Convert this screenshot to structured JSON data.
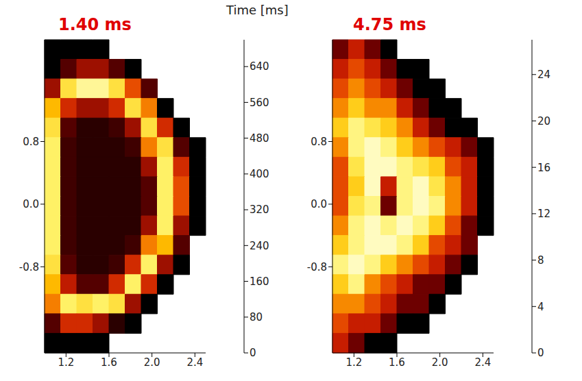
{
  "title": "Time [ms]",
  "chart_data": [
    {
      "type": "heatmap",
      "title": "1.40 ms",
      "xlim": [
        1.0,
        2.5
      ],
      "ylim": [
        -1.9,
        2.1
      ],
      "xticks": [
        1.2,
        1.6,
        {
          "value": 2,
          "label": "2.0"
        },
        2.4
      ],
      "yticks": [
        -0.8,
        {
          "value": 0,
          "label": "0.0"
        },
        0.8
      ],
      "x_bins": [
        1.0,
        1.15,
        1.3,
        1.45,
        1.6,
        1.75,
        1.9,
        2.05,
        2.2,
        2.35,
        2.5
      ],
      "y_bins": [
        2.1,
        1.85,
        1.6,
        1.35,
        1.1,
        0.85,
        0.6,
        0.35,
        0.1,
        -0.15,
        -0.4,
        -0.65,
        -0.9,
        -1.15,
        -1.4,
        -1.65,
        -1.9
      ],
      "cells": [
        [
          0,
          0,
          0,
          0,
          null,
          null,
          null,
          null,
          null,
          null
        ],
        [
          0,
          80,
          160,
          160,
          80,
          0,
          null,
          null,
          null,
          null
        ],
        [
          160,
          560,
          640,
          640,
          560,
          320,
          80,
          null,
          null,
          null
        ],
        [
          480,
          240,
          160,
          160,
          240,
          560,
          400,
          0,
          null,
          null
        ],
        [
          560,
          80,
          40,
          40,
          60,
          160,
          560,
          240,
          0,
          null
        ],
        [
          600,
          60,
          40,
          40,
          40,
          60,
          400,
          560,
          80,
          0
        ],
        [
          600,
          60,
          40,
          40,
          40,
          40,
          160,
          600,
          240,
          0
        ],
        [
          600,
          60,
          40,
          40,
          40,
          40,
          80,
          600,
          320,
          0
        ],
        [
          600,
          60,
          40,
          40,
          40,
          40,
          80,
          600,
          320,
          0
        ],
        [
          600,
          60,
          40,
          40,
          40,
          40,
          160,
          600,
          160,
          0
        ],
        [
          600,
          60,
          40,
          40,
          40,
          60,
          400,
          480,
          80,
          null
        ],
        [
          560,
          80,
          40,
          40,
          60,
          240,
          600,
          160,
          0,
          null
        ],
        [
          480,
          200,
          80,
          80,
          240,
          600,
          240,
          0,
          null,
          null
        ],
        [
          400,
          600,
          560,
          600,
          560,
          160,
          0,
          null,
          null,
          null
        ],
        [
          80,
          240,
          240,
          160,
          40,
          0,
          null,
          null,
          null,
          null
        ],
        [
          0,
          0,
          0,
          0,
          null,
          null,
          null,
          null,
          null,
          null
        ]
      ],
      "colorbar_range": [
        0,
        700
      ],
      "colorbar_ticks": [
        0,
        80,
        160,
        240,
        320,
        400,
        480,
        560,
        640
      ]
    },
    {
      "type": "heatmap",
      "title": "4.75 ms",
      "xlim": [
        1.0,
        2.5
      ],
      "ylim": [
        -1.9,
        2.1
      ],
      "xticks": [
        1.2,
        1.6,
        {
          "value": 2,
          "label": "2.0"
        },
        2.4
      ],
      "yticks": [
        -0.8,
        {
          "value": 0,
          "label": "0.0"
        },
        0.8
      ],
      "x_bins": [
        1.0,
        1.15,
        1.3,
        1.45,
        1.6,
        1.75,
        1.9,
        2.05,
        2.2,
        2.35,
        2.5
      ],
      "y_bins": [
        2.1,
        1.85,
        1.6,
        1.35,
        1.1,
        0.85,
        0.6,
        0.35,
        0.1,
        -0.15,
        -0.4,
        -0.65,
        -0.9,
        -1.15,
        -1.4,
        -1.65,
        -1.9
      ],
      "cells": [
        [
          4,
          8,
          4,
          0,
          null,
          null,
          null,
          null,
          null,
          null
        ],
        [
          8,
          12,
          8,
          4,
          0,
          0,
          null,
          null,
          null,
          null
        ],
        [
          12,
          16,
          12,
          8,
          4,
          0,
          0,
          null,
          null,
          null
        ],
        [
          16,
          20,
          16,
          16,
          8,
          4,
          0,
          0,
          null,
          null
        ],
        [
          20,
          24,
          22,
          20,
          16,
          8,
          4,
          0,
          0,
          null
        ],
        [
          16,
          24,
          26,
          24,
          20,
          16,
          12,
          8,
          4,
          0
        ],
        [
          12,
          22,
          26,
          26,
          24,
          22,
          20,
          12,
          8,
          0
        ],
        [
          12,
          20,
          26,
          8,
          24,
          26,
          22,
          16,
          8,
          0
        ],
        [
          12,
          22,
          24,
          4,
          24,
          26,
          24,
          16,
          8,
          0
        ],
        [
          16,
          24,
          26,
          24,
          26,
          24,
          20,
          12,
          4,
          0
        ],
        [
          20,
          24,
          26,
          26,
          24,
          20,
          12,
          8,
          4,
          null
        ],
        [
          24,
          26,
          24,
          20,
          16,
          12,
          8,
          4,
          0,
          null
        ],
        [
          20,
          24,
          16,
          12,
          8,
          4,
          4,
          0,
          null,
          null
        ],
        [
          16,
          16,
          12,
          8,
          4,
          4,
          0,
          null,
          null,
          null
        ],
        [
          12,
          8,
          8,
          4,
          0,
          0,
          null,
          null,
          null,
          null
        ],
        [
          8,
          4,
          0,
          0,
          null,
          null,
          null,
          null,
          null,
          null
        ]
      ],
      "colorbar_range": [
        0,
        27
      ],
      "colorbar_ticks": [
        0,
        4,
        8,
        12,
        16,
        20,
        24
      ]
    }
  ]
}
